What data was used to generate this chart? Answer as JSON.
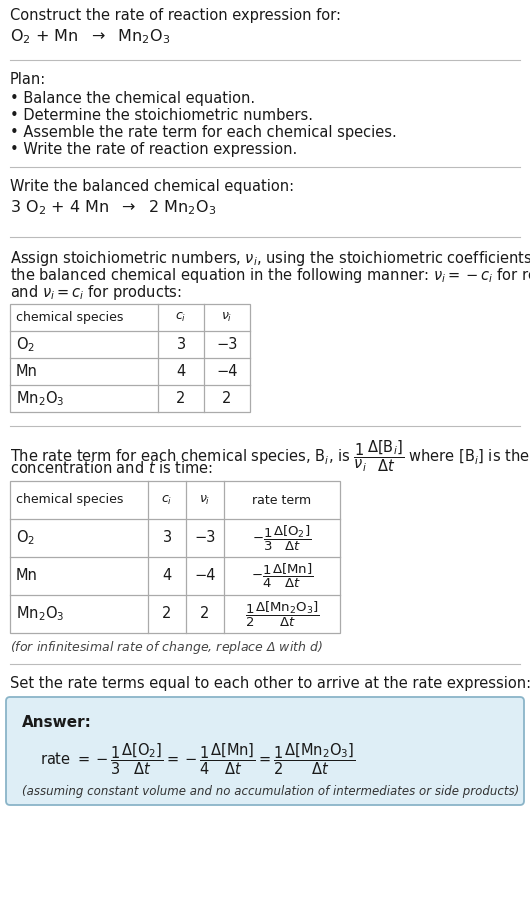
{
  "bg_color": "#ffffff",
  "text_color": "#1a1a1a",
  "separator_color": "#bbbbbb",
  "section1_title": "Construct the rate of reaction expression for:",
  "plan_title": "Plan:",
  "plan_items": [
    "• Balance the chemical equation.",
    "• Determine the stoichiometric numbers.",
    "• Assemble the rate term for each chemical species.",
    "• Write the rate of reaction expression."
  ],
  "balanced_title": "Write the balanced chemical equation:",
  "stoich_intro_line1": "Assign stoichiometric numbers, $\\nu_i$, using the stoichiometric coefficients, $c_i$, from",
  "stoich_intro_line2": "the balanced chemical equation in the following manner: $\\nu_i = -c_i$ for reactants",
  "stoich_intro_line3": "and $\\nu_i = c_i$ for products:",
  "table1_headers": [
    "chemical species",
    "$c_i$",
    "$\\nu_i$"
  ],
  "table1_rows": [
    [
      "$\\mathrm{O_2}$",
      "3",
      "−3"
    ],
    [
      "Mn",
      "4",
      "−4"
    ],
    [
      "$\\mathrm{Mn_2O_3}$",
      "2",
      "2"
    ]
  ],
  "rate_intro_line1": "The rate term for each chemical species, $\\mathrm{B}_i$, is $\\dfrac{1}{\\nu_i}\\dfrac{\\Delta[\\mathrm{B}_i]}{\\Delta t}$ where $[\\mathrm{B}_i]$ is the amount",
  "rate_intro_line2": "concentration and $t$ is time:",
  "table2_headers": [
    "chemical species",
    "$c_i$",
    "$\\nu_i$",
    "rate term"
  ],
  "table2_rows": [
    [
      "$\\mathrm{O_2}$",
      "3",
      "−3",
      "$-\\dfrac{1}{3}\\dfrac{\\Delta[\\mathrm{O_2}]}{\\Delta t}$"
    ],
    [
      "Mn",
      "4",
      "−4",
      "$-\\dfrac{1}{4}\\dfrac{\\Delta[\\mathrm{Mn}]}{\\Delta t}$"
    ],
    [
      "$\\mathrm{Mn_2O_3}$",
      "2",
      "2",
      "$\\dfrac{1}{2}\\dfrac{\\Delta[\\mathrm{Mn_2O_3}]}{\\Delta t}$"
    ]
  ],
  "infinitesimal_note": "(for infinitesimal rate of change, replace Δ with $d$)",
  "set_equal_text": "Set the rate terms equal to each other to arrive at the rate expression:",
  "answer_box_color": "#deeef6",
  "answer_box_border": "#8ab4c8",
  "answer_label": "Answer:",
  "answer_note": "(assuming constant volume and no accumulation of intermediates or side products)"
}
